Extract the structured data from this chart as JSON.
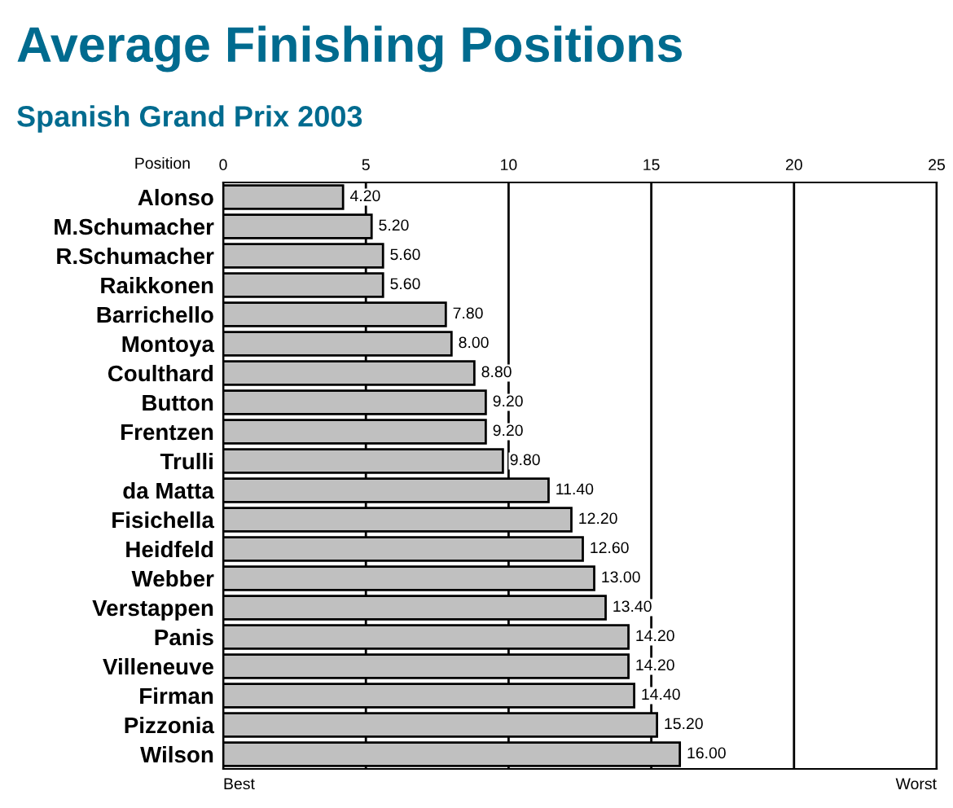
{
  "chart_data": {
    "type": "bar",
    "orientation": "horizontal",
    "title": "Average Finishing Positions",
    "subtitle": "Spanish Grand Prix 2003",
    "xlabel": "Position",
    "categories": [
      "Alonso",
      "M.Schumacher",
      "R.Schumacher",
      "Raikkonen",
      "Barrichello",
      "Montoya",
      "Coulthard",
      "Button",
      "Frentzen",
      "Trulli",
      "da Matta",
      "Fisichella",
      "Heidfeld",
      "Webber",
      "Verstappen",
      "Panis",
      "Villeneuve",
      "Firman",
      "Pizzonia",
      "Wilson"
    ],
    "values": [
      4.2,
      5.2,
      5.6,
      5.6,
      7.8,
      8.0,
      8.8,
      9.2,
      9.2,
      9.8,
      11.4,
      12.2,
      12.6,
      13.0,
      13.4,
      14.2,
      14.2,
      14.4,
      15.2,
      16.0
    ],
    "value_labels": [
      "4.20",
      "5.20",
      "5.60",
      "5.60",
      "7.80",
      "8.00",
      "8.80",
      "9.20",
      "9.20",
      "9.80",
      "11.40",
      "12.20",
      "12.60",
      "13.00",
      "13.40",
      "14.20",
      "14.20",
      "14.40",
      "15.20",
      "16.00"
    ],
    "color": "#c0c0c0",
    "xlim": [
      0,
      25
    ],
    "xticks": [
      0,
      5,
      10,
      15,
      20,
      25
    ],
    "grid": "x",
    "annotations": [
      "Best",
      "Worst"
    ]
  }
}
